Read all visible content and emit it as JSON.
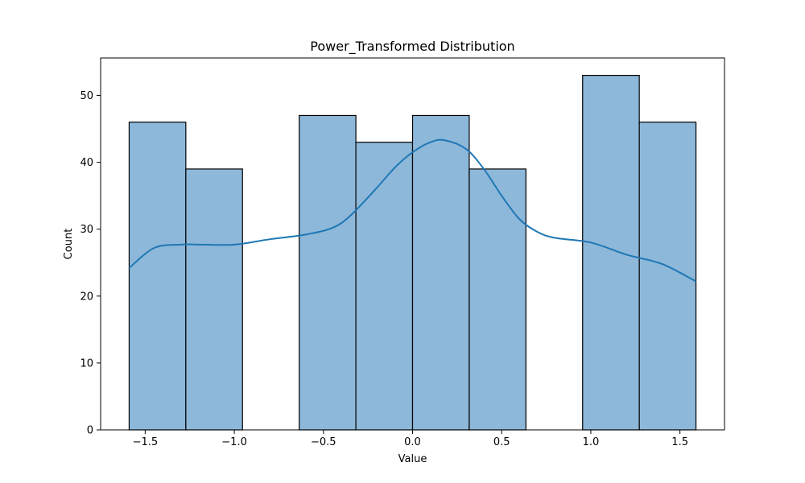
{
  "chart_data": {
    "type": "bar",
    "subtype": "histogram-with-kde",
    "title": "Power_Transformed Distribution",
    "xlabel": "Value",
    "ylabel": "Count",
    "xlim": [
      -1.75,
      1.75
    ],
    "ylim": [
      0,
      55.6
    ],
    "xticks": [
      -1.5,
      -1.0,
      -0.5,
      0.0,
      0.5,
      1.0,
      1.5
    ],
    "xtick_labels": [
      "−1.5",
      "−1.0",
      "−0.5",
      "0.0",
      "0.5",
      "1.0",
      "1.5"
    ],
    "yticks": [
      0,
      10,
      20,
      30,
      40,
      50
    ],
    "ytick_labels": [
      "0",
      "10",
      "20",
      "30",
      "40",
      "50"
    ],
    "bins": [
      {
        "x0": -1.59,
        "x1": -1.272,
        "count": 46
      },
      {
        "x0": -1.272,
        "x1": -0.954,
        "count": 39
      },
      {
        "x0": -0.954,
        "x1": -0.636,
        "count": 0
      },
      {
        "x0": -0.636,
        "x1": -0.318,
        "count": 47
      },
      {
        "x0": -0.318,
        "x1": 0.0,
        "count": 43
      },
      {
        "x0": 0.0,
        "x1": 0.318,
        "count": 47
      },
      {
        "x0": 0.318,
        "x1": 0.636,
        "count": 39
      },
      {
        "x0": 0.636,
        "x1": 0.954,
        "count": 0
      },
      {
        "x0": 0.954,
        "x1": 1.272,
        "count": 53
      },
      {
        "x0": 1.272,
        "x1": 1.59,
        "count": 46
      }
    ],
    "kde": {
      "x": [
        -1.59,
        -1.45,
        -1.3,
        -1.2,
        -1.0,
        -0.8,
        -0.6,
        -0.45,
        -0.35,
        -0.2,
        -0.1,
        0.0,
        0.1,
        0.18,
        0.3,
        0.4,
        0.5,
        0.6,
        0.7,
        0.8,
        1.0,
        1.2,
        1.4,
        1.59
      ],
      "y": [
        24.2,
        27.2,
        27.7,
        27.7,
        27.7,
        28.5,
        29.2,
        30.2,
        32.0,
        36.2,
        39.2,
        41.5,
        43.0,
        43.3,
        42.0,
        39.0,
        35.0,
        31.5,
        29.6,
        28.7,
        28.0,
        26.2,
        24.8,
        22.2
      ]
    },
    "colors": {
      "bar_fill": "#8db8da",
      "bar_edge": "#000000",
      "kde_line": "#1f77b4"
    },
    "grid": false,
    "legend": "none"
  }
}
